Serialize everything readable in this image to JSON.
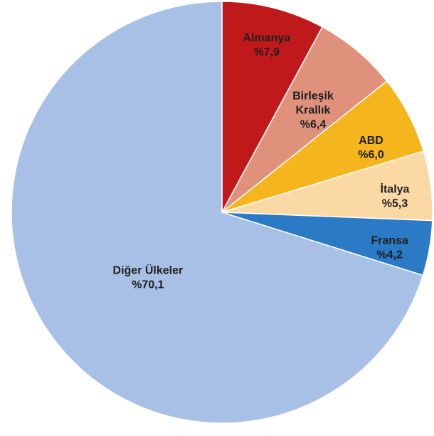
{
  "chart_data": {
    "type": "pie",
    "start_angle_deg": 0,
    "direction": "clockwise",
    "slices": [
      {
        "name": "Almanya",
        "name_lines": [
          "Almanya"
        ],
        "value": 7.9,
        "value_label": "%7,9",
        "color": "#c0191b"
      },
      {
        "name": "Birleşik Krallık",
        "name_lines": [
          "Birleşik",
          "Krallık"
        ],
        "value": 6.4,
        "value_label": "%6,4",
        "color": "#e0917c"
      },
      {
        "name": "ABD",
        "name_lines": [
          "ABD"
        ],
        "value": 6.0,
        "value_label": "%6,0",
        "color": "#f5b51c"
      },
      {
        "name": "İtalya",
        "name_lines": [
          "İtalya"
        ],
        "value": 5.3,
        "value_label": "%5,3",
        "color": "#fbd9a5"
      },
      {
        "name": "Fransa",
        "name_lines": [
          "Fransa"
        ],
        "value": 4.2,
        "value_label": "%4,2",
        "color": "#2a7ac6"
      },
      {
        "name": "Diğer Ülkeler",
        "name_lines": [
          "Diğer Ülkeler"
        ],
        "value": 70.1,
        "value_label": "%70,1",
        "color": "#a8c0e6"
      }
    ]
  }
}
